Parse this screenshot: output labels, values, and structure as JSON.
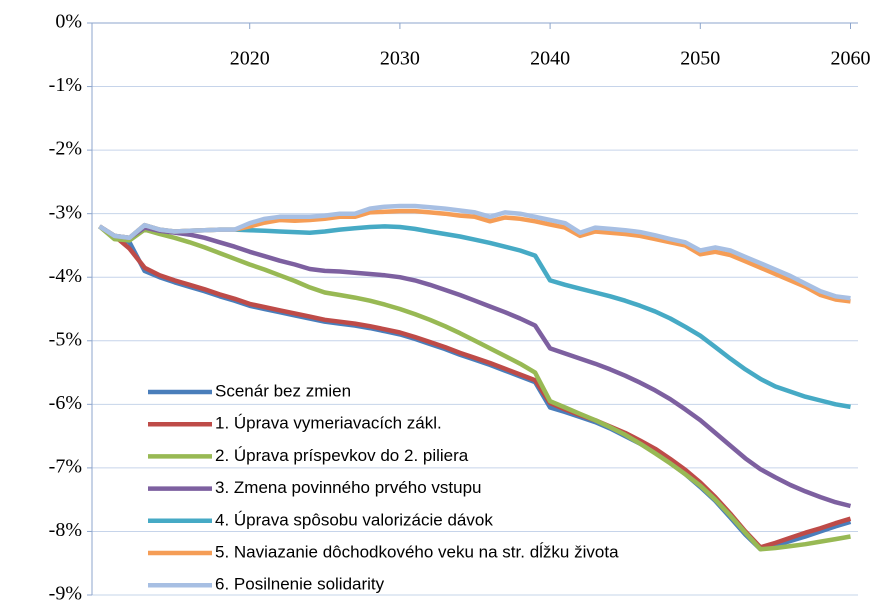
{
  "chart_data": {
    "type": "line",
    "x": [
      2010,
      2011,
      2012,
      2013,
      2014,
      2015,
      2016,
      2017,
      2018,
      2019,
      2020,
      2021,
      2022,
      2023,
      2024,
      2025,
      2026,
      2027,
      2028,
      2029,
      2030,
      2031,
      2032,
      2033,
      2034,
      2035,
      2036,
      2037,
      2038,
      2039,
      2040,
      2041,
      2042,
      2043,
      2044,
      2045,
      2046,
      2047,
      2048,
      2049,
      2050,
      2051,
      2052,
      2053,
      2054,
      2055,
      2056,
      2057,
      2058,
      2059,
      2060
    ],
    "xlim": [
      2009.5,
      2060.5
    ],
    "xticks": [
      2020,
      2030,
      2040,
      2050,
      2060
    ],
    "ylim": [
      -9,
      0
    ],
    "yticks": [
      {
        "value": 0,
        "label": "0%"
      },
      {
        "value": -1,
        "label": "-1%"
      },
      {
        "value": -2,
        "label": "-2%"
      },
      {
        "value": -3,
        "label": "-3%"
      },
      {
        "value": -4,
        "label": "-4%"
      },
      {
        "value": -5,
        "label": "-5%"
      },
      {
        "value": -6,
        "label": "-6%"
      },
      {
        "value": -7,
        "label": "-7%"
      },
      {
        "value": -8,
        "label": "-8%"
      },
      {
        "value": -9,
        "label": "-9%"
      }
    ],
    "grid": true,
    "legend": "lower left",
    "series": [
      {
        "name": "Scenár bez zmien",
        "color": "#4a7ebb",
        "values": [
          -3.2,
          -3.35,
          -3.45,
          -3.9,
          -4.0,
          -4.08,
          -4.15,
          -4.22,
          -4.3,
          -4.37,
          -4.45,
          -4.5,
          -4.55,
          -4.6,
          -4.65,
          -4.7,
          -4.73,
          -4.76,
          -4.8,
          -4.85,
          -4.9,
          -4.97,
          -5.05,
          -5.13,
          -5.22,
          -5.3,
          -5.38,
          -5.47,
          -5.56,
          -5.65,
          -6.05,
          -6.12,
          -6.2,
          -6.28,
          -6.38,
          -6.5,
          -6.62,
          -6.76,
          -6.92,
          -7.1,
          -7.3,
          -7.52,
          -7.78,
          -8.05,
          -8.28,
          -8.22,
          -8.15,
          -8.08,
          -8.0,
          -7.92,
          -7.85
        ]
      },
      {
        "name": "1. Úprava vymeriavacích zákl.",
        "color": "#be4b48",
        "values": [
          -3.2,
          -3.35,
          -3.55,
          -3.85,
          -3.97,
          -4.05,
          -4.12,
          -4.19,
          -4.27,
          -4.34,
          -4.42,
          -4.47,
          -4.52,
          -4.57,
          -4.62,
          -4.67,
          -4.7,
          -4.73,
          -4.77,
          -4.82,
          -4.87,
          -4.94,
          -5.02,
          -5.1,
          -5.19,
          -5.27,
          -5.35,
          -5.44,
          -5.53,
          -5.62,
          -5.98,
          -6.08,
          -6.17,
          -6.25,
          -6.35,
          -6.45,
          -6.57,
          -6.7,
          -6.86,
          -7.03,
          -7.23,
          -7.46,
          -7.72,
          -8.0,
          -8.25,
          -8.18,
          -8.1,
          -8.02,
          -7.95,
          -7.87,
          -7.8
        ]
      },
      {
        "name": "2. Úprava príspevkov do 2. piliera",
        "color": "#98b954",
        "values": [
          -3.2,
          -3.4,
          -3.42,
          -3.25,
          -3.32,
          -3.38,
          -3.45,
          -3.53,
          -3.62,
          -3.71,
          -3.8,
          -3.88,
          -3.97,
          -4.06,
          -4.16,
          -4.24,
          -4.28,
          -4.32,
          -4.37,
          -4.43,
          -4.5,
          -4.58,
          -4.67,
          -4.77,
          -4.88,
          -5.0,
          -5.12,
          -5.24,
          -5.36,
          -5.5,
          -5.95,
          -6.05,
          -6.15,
          -6.25,
          -6.36,
          -6.48,
          -6.62,
          -6.77,
          -6.93,
          -7.1,
          -7.28,
          -7.5,
          -7.75,
          -8.02,
          -8.28,
          -8.26,
          -8.23,
          -8.2,
          -8.16,
          -8.12,
          -8.08
        ]
      },
      {
        "name": "3. Zmena povinného prvého vstupu",
        "color": "#7d60a0",
        "values": [
          -3.2,
          -3.35,
          -3.38,
          -3.22,
          -3.27,
          -3.3,
          -3.33,
          -3.38,
          -3.45,
          -3.52,
          -3.6,
          -3.67,
          -3.74,
          -3.8,
          -3.87,
          -3.9,
          -3.91,
          -3.93,
          -3.95,
          -3.97,
          -4.0,
          -4.05,
          -4.12,
          -4.2,
          -4.28,
          -4.37,
          -4.46,
          -4.55,
          -4.65,
          -4.76,
          -5.12,
          -5.2,
          -5.28,
          -5.36,
          -5.45,
          -5.55,
          -5.66,
          -5.78,
          -5.92,
          -6.08,
          -6.25,
          -6.45,
          -6.65,
          -6.85,
          -7.02,
          -7.15,
          -7.27,
          -7.37,
          -7.46,
          -7.54,
          -7.6
        ]
      },
      {
        "name": "4. Úprava spôsobu valorizácie dávok",
        "color": "#46aac5",
        "values": [
          -3.2,
          -3.35,
          -3.38,
          -3.18,
          -3.25,
          -3.28,
          -3.27,
          -3.26,
          -3.25,
          -3.25,
          -3.26,
          -3.27,
          -3.28,
          -3.29,
          -3.3,
          -3.28,
          -3.25,
          -3.23,
          -3.21,
          -3.2,
          -3.21,
          -3.24,
          -3.28,
          -3.32,
          -3.36,
          -3.41,
          -3.46,
          -3.52,
          -3.58,
          -3.66,
          -4.05,
          -4.12,
          -4.18,
          -4.24,
          -4.3,
          -4.37,
          -4.45,
          -4.54,
          -4.65,
          -4.78,
          -4.92,
          -5.1,
          -5.28,
          -5.45,
          -5.6,
          -5.72,
          -5.8,
          -5.88,
          -5.94,
          -6.0,
          -6.04
        ]
      },
      {
        "name": "5. Naviazanie dôchodkového veku na str. dĺžku života",
        "color": "#f59d56",
        "values": [
          -3.2,
          -3.35,
          -3.38,
          -3.18,
          -3.25,
          -3.28,
          -3.27,
          -3.26,
          -3.25,
          -3.25,
          -3.2,
          -3.14,
          -3.1,
          -3.11,
          -3.1,
          -3.08,
          -3.05,
          -3.05,
          -2.98,
          -2.97,
          -2.96,
          -2.96,
          -2.98,
          -3.0,
          -3.03,
          -3.05,
          -3.12,
          -3.06,
          -3.08,
          -3.12,
          -3.17,
          -3.22,
          -3.35,
          -3.28,
          -3.3,
          -3.32,
          -3.35,
          -3.4,
          -3.45,
          -3.5,
          -3.64,
          -3.6,
          -3.65,
          -3.75,
          -3.85,
          -3.95,
          -4.05,
          -4.15,
          -4.28,
          -4.35,
          -4.38
        ]
      },
      {
        "name": "6. Posilnenie solidarity",
        "color": "#a7bfe3",
        "values": [
          -3.2,
          -3.35,
          -3.38,
          -3.18,
          -3.25,
          -3.28,
          -3.27,
          -3.26,
          -3.25,
          -3.25,
          -3.15,
          -3.08,
          -3.05,
          -3.05,
          -3.05,
          -3.03,
          -3.0,
          -3.0,
          -2.92,
          -2.89,
          -2.88,
          -2.88,
          -2.9,
          -2.92,
          -2.95,
          -2.98,
          -3.05,
          -2.98,
          -3.0,
          -3.05,
          -3.1,
          -3.15,
          -3.3,
          -3.22,
          -3.24,
          -3.26,
          -3.29,
          -3.34,
          -3.4,
          -3.45,
          -3.58,
          -3.53,
          -3.58,
          -3.68,
          -3.78,
          -3.88,
          -3.98,
          -4.1,
          -4.22,
          -4.3,
          -4.33
        ]
      }
    ]
  }
}
